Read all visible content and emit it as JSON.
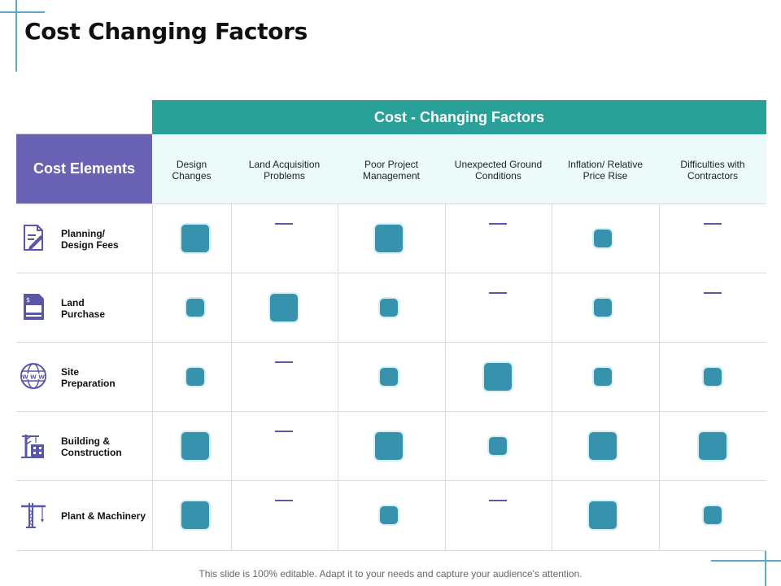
{
  "page": {
    "title": "Cost Changing Factors"
  },
  "table": {
    "band_title": "Cost - Changing Factors",
    "row_header_title": "Cost Elements",
    "columns": [
      "Design\nChanges",
      "Land Acquisition\nProblems",
      "Poor Project\nManagement",
      "Unexpected Ground\nConditions",
      "Inflation/ Relative\nPrice Rise",
      "Difficulties with\nContractors"
    ],
    "rows": [
      {
        "label": "Planning/\nDesign Fees",
        "icon": "document-pen-icon",
        "cells": [
          "large",
          "dash",
          "large",
          "dash",
          "small",
          "dash"
        ]
      },
      {
        "label": "Land\nPurchase",
        "icon": "price-document-icon",
        "cells": [
          "small",
          "large",
          "small",
          "dash",
          "small",
          "dash"
        ]
      },
      {
        "label": "Site\nPreparation",
        "icon": "globe-www-icon",
        "cells": [
          "small",
          "dash",
          "small",
          "large",
          "small",
          "small"
        ]
      },
      {
        "label": "Building &\nConstruction",
        "icon": "crane-building-icon",
        "cells": [
          "large",
          "dash",
          "large",
          "small",
          "large",
          "large"
        ]
      },
      {
        "label": "Plant & Machinery",
        "icon": "tower-crane-icon",
        "cells": [
          "large",
          "dash",
          "small",
          "dash",
          "large",
          "small"
        ]
      }
    ]
  },
  "footer": {
    "text": "This slide is 100% editable. Adapt it to your needs and capture your audience's attention."
  },
  "colors": {
    "teal_header": "#2aa198",
    "purple_header": "#6a63b5",
    "light_teal": "#ecfaf9",
    "square": "#3793ad",
    "dash": "#5a57a8"
  }
}
